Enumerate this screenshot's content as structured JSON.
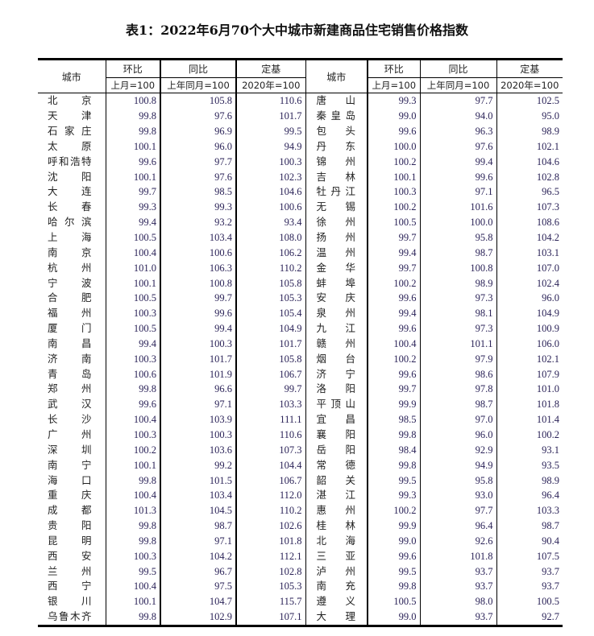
{
  "title": "表1：2022年6月70个大中城市新建商品住宅销售价格指数",
  "header": {
    "city": "城市",
    "hb": "环比",
    "hb_sub": "上月=100",
    "tb": "同比",
    "tb_sub": "上年同月=100",
    "dj": "定基",
    "dj_sub": "2020年=100"
  },
  "rows": [
    {
      "left": [
        "北京",
        "100.8",
        "105.8",
        "110.6"
      ],
      "right": [
        "唐山",
        "99.3",
        "97.7",
        "102.5"
      ]
    },
    {
      "left": [
        "天津",
        "99.8",
        "97.6",
        "101.7"
      ],
      "right": [
        "秦皇岛",
        "99.0",
        "94.0",
        "95.0"
      ]
    },
    {
      "left": [
        "石家庄",
        "99.8",
        "96.9",
        "99.5"
      ],
      "right": [
        "包头",
        "99.6",
        "96.3",
        "98.9"
      ]
    },
    {
      "left": [
        "太原",
        "100.1",
        "96.0",
        "94.9"
      ],
      "right": [
        "丹东",
        "100.0",
        "97.6",
        "102.1"
      ]
    },
    {
      "left": [
        "呼和浩特",
        "99.6",
        "97.7",
        "100.3"
      ],
      "right": [
        "锦州",
        "100.2",
        "99.4",
        "104.6"
      ]
    },
    {
      "left": [
        "沈阳",
        "100.1",
        "97.6",
        "102.3"
      ],
      "right": [
        "吉林",
        "100.1",
        "99.6",
        "102.8"
      ]
    },
    {
      "left": [
        "大连",
        "99.7",
        "98.5",
        "104.6"
      ],
      "right": [
        "牡丹江",
        "100.3",
        "97.1",
        "96.5"
      ]
    },
    {
      "left": [
        "长春",
        "99.3",
        "99.3",
        "100.6"
      ],
      "right": [
        "无锡",
        "100.2",
        "101.6",
        "107.3"
      ]
    },
    {
      "left": [
        "哈尔滨",
        "99.4",
        "93.2",
        "93.4"
      ],
      "right": [
        "徐州",
        "100.5",
        "100.0",
        "108.6"
      ]
    },
    {
      "left": [
        "上海",
        "100.5",
        "103.4",
        "108.0"
      ],
      "right": [
        "扬州",
        "99.7",
        "95.8",
        "104.2"
      ]
    },
    {
      "left": [
        "南京",
        "100.4",
        "100.6",
        "106.2"
      ],
      "right": [
        "温州",
        "99.4",
        "98.7",
        "103.1"
      ]
    },
    {
      "left": [
        "杭州",
        "101.0",
        "106.3",
        "110.2"
      ],
      "right": [
        "金华",
        "99.7",
        "100.8",
        "107.0"
      ]
    },
    {
      "left": [
        "宁波",
        "100.1",
        "100.8",
        "105.8"
      ],
      "right": [
        "蚌埠",
        "100.2",
        "98.9",
        "102.4"
      ]
    },
    {
      "left": [
        "合肥",
        "100.5",
        "99.7",
        "105.3"
      ],
      "right": [
        "安庆",
        "99.6",
        "97.3",
        "96.0"
      ]
    },
    {
      "left": [
        "福州",
        "100.3",
        "99.6",
        "105.4"
      ],
      "right": [
        "泉州",
        "99.4",
        "98.1",
        "104.9"
      ]
    },
    {
      "left": [
        "厦门",
        "100.5",
        "99.4",
        "104.9"
      ],
      "right": [
        "九江",
        "99.6",
        "97.3",
        "100.9"
      ]
    },
    {
      "left": [
        "南昌",
        "99.4",
        "100.3",
        "101.7"
      ],
      "right": [
        "赣州",
        "100.4",
        "101.1",
        "106.0"
      ]
    },
    {
      "left": [
        "济南",
        "100.3",
        "101.7",
        "105.8"
      ],
      "right": [
        "烟台",
        "100.2",
        "97.9",
        "102.1"
      ]
    },
    {
      "left": [
        "青岛",
        "100.6",
        "101.9",
        "106.7"
      ],
      "right": [
        "济宁",
        "99.6",
        "98.6",
        "107.9"
      ]
    },
    {
      "left": [
        "郑州",
        "99.8",
        "96.6",
        "99.7"
      ],
      "right": [
        "洛阳",
        "99.7",
        "97.8",
        "101.0"
      ]
    },
    {
      "left": [
        "武汉",
        "99.6",
        "97.1",
        "103.3"
      ],
      "right": [
        "平顶山",
        "99.9",
        "98.7",
        "101.8"
      ]
    },
    {
      "left": [
        "长沙",
        "100.4",
        "103.9",
        "111.1"
      ],
      "right": [
        "宜昌",
        "98.5",
        "97.0",
        "101.4"
      ]
    },
    {
      "left": [
        "广州",
        "100.3",
        "100.3",
        "110.6"
      ],
      "right": [
        "襄阳",
        "99.8",
        "96.0",
        "100.2"
      ]
    },
    {
      "left": [
        "深圳",
        "100.2",
        "103.6",
        "107.3"
      ],
      "right": [
        "岳阳",
        "98.4",
        "92.9",
        "93.1"
      ]
    },
    {
      "left": [
        "南宁",
        "100.1",
        "99.2",
        "104.4"
      ],
      "right": [
        "常德",
        "99.8",
        "94.9",
        "93.5"
      ]
    },
    {
      "left": [
        "海口",
        "99.8",
        "101.5",
        "106.7"
      ],
      "right": [
        "韶关",
        "99.5",
        "95.8",
        "98.9"
      ]
    },
    {
      "left": [
        "重庆",
        "100.4",
        "103.4",
        "112.0"
      ],
      "right": [
        "湛江",
        "99.3",
        "93.0",
        "96.4"
      ]
    },
    {
      "left": [
        "成都",
        "101.3",
        "104.5",
        "110.2"
      ],
      "right": [
        "惠州",
        "100.2",
        "97.7",
        "103.3"
      ]
    },
    {
      "left": [
        "贵阳",
        "99.8",
        "98.7",
        "102.6"
      ],
      "right": [
        "桂林",
        "99.9",
        "96.4",
        "98.7"
      ]
    },
    {
      "left": [
        "昆明",
        "99.8",
        "97.1",
        "101.8"
      ],
      "right": [
        "北海",
        "99.0",
        "92.6",
        "90.4"
      ]
    },
    {
      "left": [
        "西安",
        "100.3",
        "104.2",
        "112.1"
      ],
      "right": [
        "三亚",
        "99.6",
        "101.8",
        "107.5"
      ]
    },
    {
      "left": [
        "兰州",
        "99.5",
        "96.7",
        "102.8"
      ],
      "right": [
        "泸州",
        "99.5",
        "93.7",
        "93.7"
      ]
    },
    {
      "left": [
        "西宁",
        "100.4",
        "97.5",
        "105.3"
      ],
      "right": [
        "南充",
        "99.8",
        "93.7",
        "93.7"
      ]
    },
    {
      "left": [
        "银川",
        "100.1",
        "104.7",
        "115.7"
      ],
      "right": [
        "遵义",
        "100.5",
        "98.0",
        "100.5"
      ]
    },
    {
      "left": [
        "乌鲁木齐",
        "99.8",
        "102.9",
        "107.1"
      ],
      "right": [
        "大理",
        "99.0",
        "93.7",
        "92.7"
      ]
    }
  ]
}
